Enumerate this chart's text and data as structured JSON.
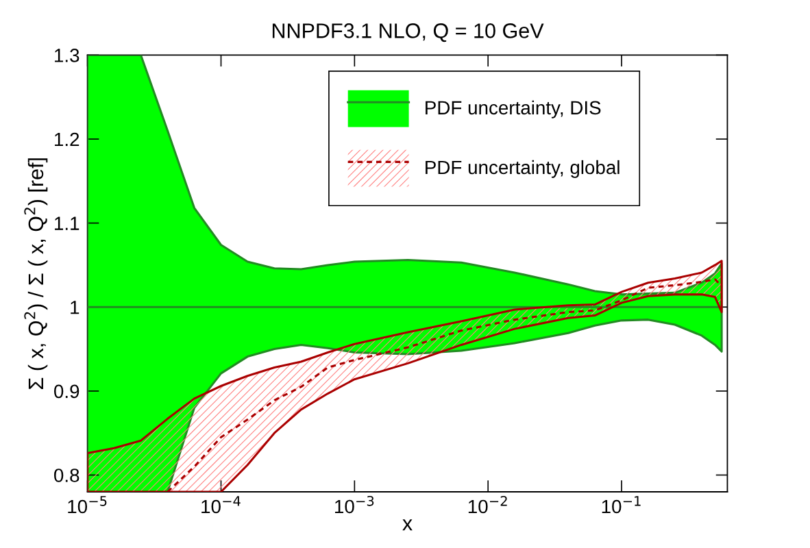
{
  "chart_data": {
    "type": "line",
    "title": "NNPDF3.1 NLO, Q = 10 GeV",
    "xlabel": "x",
    "ylabel": "Σ ( x, Q$^{2}$) / Σ ( x, Q$^{2}$) [ref]",
    "x": [
      1e-05,
      1.58e-05,
      2.51e-05,
      3.98e-05,
      6.31e-05,
      0.0001,
      0.000158,
      0.000251,
      0.000398,
      0.000631,
      0.001,
      0.00251,
      0.00631,
      0.0158,
      0.0398,
      0.0631,
      0.1,
      0.158,
      0.251,
      0.398,
      0.501,
      0.562
    ],
    "series": [
      {
        "name": "PDF uncertainty, DIS",
        "color": "#228b22",
        "line_style": "solid",
        "values": [
          1,
          1,
          1,
          1,
          1,
          1,
          1,
          1,
          1,
          1,
          1,
          1,
          1,
          1,
          1,
          1,
          1,
          1,
          1,
          1,
          1,
          1
        ],
        "lower": [
          0.78,
          0.78,
          0.78,
          0.78,
          0.88,
          0.921,
          0.941,
          0.95,
          0.955,
          0.951,
          0.946,
          0.944,
          0.948,
          0.957,
          0.969,
          0.978,
          0.984,
          0.985,
          0.979,
          0.966,
          0.955,
          0.947
        ],
        "upper": [
          1.3,
          1.3,
          1.3,
          1.21,
          1.118,
          1.074,
          1.054,
          1.046,
          1.045,
          1.05,
          1.054,
          1.056,
          1.053,
          1.041,
          1.027,
          1.019,
          1.015,
          1.016,
          1.017,
          1.029,
          1.04,
          1.052
        ]
      },
      {
        "name": "PDF uncertainty, global",
        "color": "#aa0000",
        "line_style": "dashed",
        "values": [
          null,
          null,
          null,
          0.78,
          0.81,
          0.845,
          0.866,
          0.889,
          0.905,
          0.928,
          0.937,
          0.952,
          0.972,
          0.985,
          0.994,
          0.996,
          1.008,
          1.023,
          1.026,
          1.03,
          1.033,
          1.025
        ],
        "lower": [
          0.78,
          0.78,
          0.78,
          0.78,
          0.78,
          0.78,
          0.812,
          0.85,
          0.878,
          0.897,
          0.914,
          0.933,
          0.955,
          0.974,
          0.987,
          0.99,
          1.005,
          1.013,
          1.015,
          1.015,
          1.012,
          0.994
        ],
        "upper": [
          0.826,
          0.832,
          0.841,
          0.867,
          0.891,
          0.906,
          0.918,
          0.928,
          0.935,
          0.946,
          0.956,
          0.97,
          0.983,
          0.997,
          1.002,
          1.003,
          1.018,
          1.029,
          1.034,
          1.041,
          1.05,
          1.055
        ]
      }
    ],
    "log": "x",
    "xlim": [
      1e-05,
      0.62
    ],
    "ylim": [
      0.78,
      1.3
    ],
    "xticks": [
      {
        "value": 1e-05,
        "label": "10$^{−5}$"
      },
      {
        "value": 0.0001,
        "label": "10$^{−4}$"
      },
      {
        "value": 0.001,
        "label": "10$^{−3}$"
      },
      {
        "value": 0.01,
        "label": "10$^{−2}$"
      },
      {
        "value": 0.1,
        "label": "10$^{−1}$"
      }
    ],
    "yticks": [
      {
        "value": 0.8,
        "label": "0.8"
      },
      {
        "value": 0.9,
        "label": "0.9"
      },
      {
        "value": 1,
        "label": "1"
      },
      {
        "value": 1.1,
        "label": "1.1"
      },
      {
        "value": 1.2,
        "label": "1.2"
      },
      {
        "value": 1.3,
        "label": "1.3"
      }
    ],
    "legend": "top",
    "grid": false
  }
}
